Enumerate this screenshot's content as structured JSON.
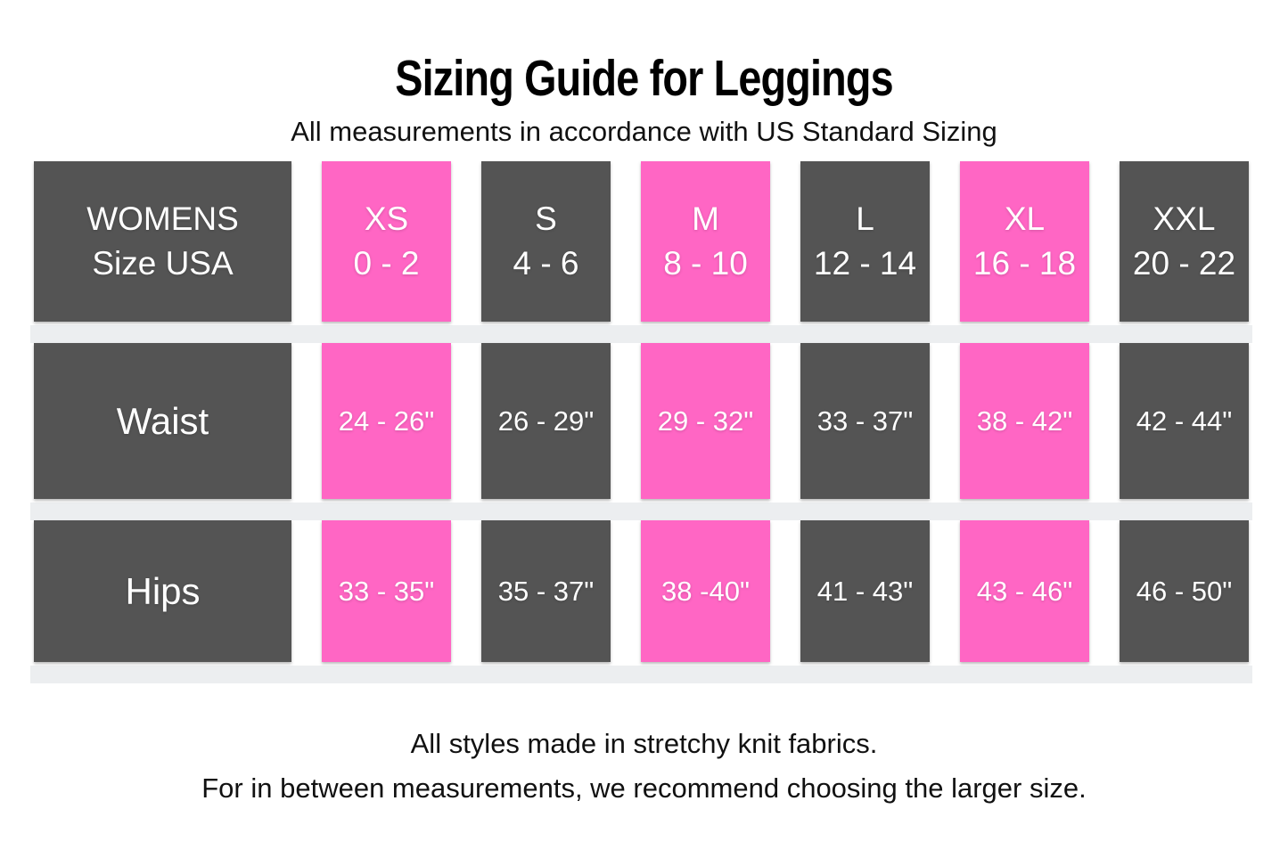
{
  "title": "Sizing Guide for Leggings",
  "subtitle": "All measurements in accordance with US Standard Sizing",
  "table": {
    "corner": {
      "line1": "WOMENS",
      "line2": "Size USA"
    },
    "columns": [
      {
        "size": "XS",
        "range": "0 - 2",
        "highlight": true
      },
      {
        "size": "S",
        "range": "4 - 6",
        "highlight": false
      },
      {
        "size": "M",
        "range": "8 - 10",
        "highlight": true
      },
      {
        "size": "L",
        "range": "12 - 14",
        "highlight": false
      },
      {
        "size": "XL",
        "range": "16 - 18",
        "highlight": true
      },
      {
        "size": "XXL",
        "range": "20 - 22",
        "highlight": false
      }
    ],
    "rows": [
      {
        "label": "Waist",
        "values": [
          "24 - 26\"",
          "26 - 29\"",
          "29 - 32\"",
          "33 - 37\"",
          "38 - 42\"",
          "42 - 44\""
        ]
      },
      {
        "label": "Hips",
        "values": [
          "33 - 35\"",
          "35 - 37\"",
          "38 -40\"",
          "41 - 43\"",
          "43 - 46\"",
          "46 - 50\""
        ]
      }
    ]
  },
  "footer": {
    "line1": "All styles made in stretchy knit fabrics.",
    "line2": "For in between measurements, we recommend choosing the larger size."
  },
  "colors": {
    "dark": "#545454",
    "pink": "#FF66C4",
    "band": "#ECEEF0",
    "cell_text": "#FFFFFF",
    "heading": "#000000",
    "body_text": "#111111",
    "background": "#FFFFFF"
  },
  "chart_data": {
    "type": "table",
    "title": "Sizing Guide for Leggings",
    "subtitle": "All measurements in accordance with US Standard Sizing",
    "columns": [
      "WOMENS Size USA",
      "XS 0 - 2",
      "S 4 - 6",
      "M 8 - 10",
      "L 12 - 14",
      "XL 16 - 18",
      "XXL 20 - 22"
    ],
    "rows": [
      [
        "Waist",
        "24 - 26\"",
        "26 - 29\"",
        "29 - 32\"",
        "33 - 37\"",
        "38 - 42\"",
        "42 - 44\""
      ],
      [
        "Hips",
        "33 - 35\"",
        "35 - 37\"",
        "38 -40\"",
        "41 - 43\"",
        "43 - 46\"",
        "46 - 50\""
      ]
    ],
    "notes": [
      "All styles made in stretchy knit fabrics.",
      "For in between measurements, we recommend choosing the larger size."
    ],
    "highlighted_columns": [
      "XS",
      "M",
      "XL"
    ],
    "highlight_color": "#FF66C4",
    "layout": "header row of sizes, measurement rows for Waist and Hips, light gray separator bands between rows"
  }
}
